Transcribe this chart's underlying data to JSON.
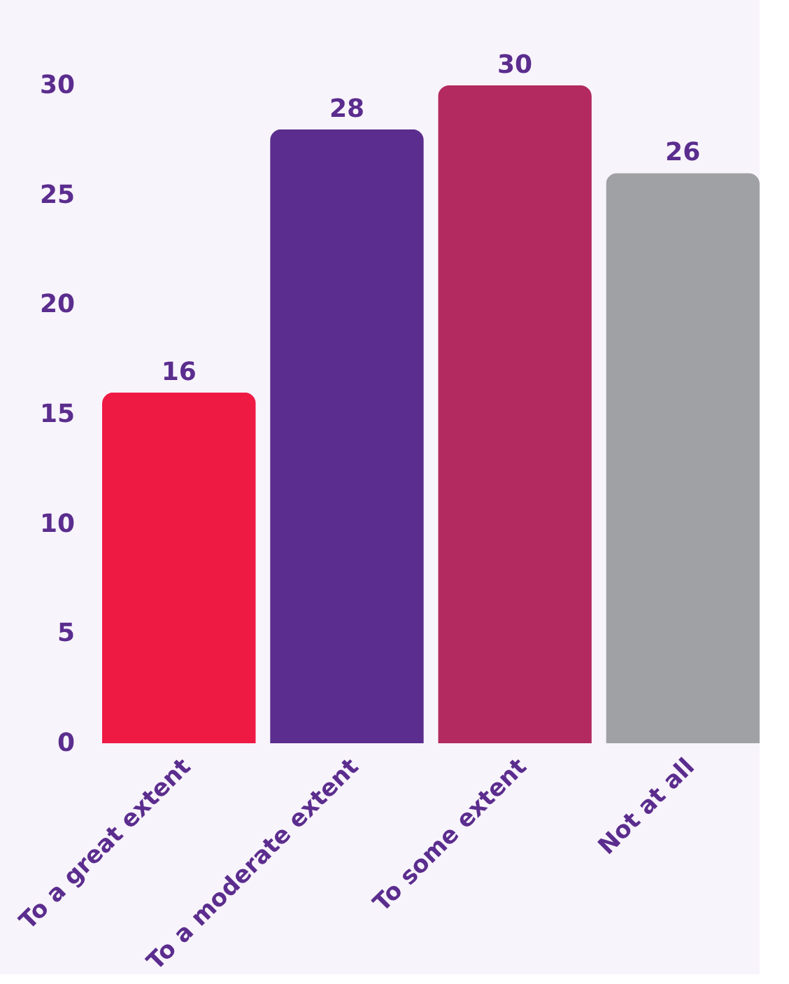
{
  "chart_data": {
    "type": "bar",
    "categories": [
      "To a great extent",
      "To a moderate extent",
      "To some extent",
      "Not at all"
    ],
    "values": [
      16,
      28,
      30,
      26
    ],
    "colors": [
      "#ee1a44",
      "#5b2d8e",
      "#b22a5f",
      "#a0a1a5"
    ],
    "ylim": [
      0,
      30
    ],
    "yticks": [
      0,
      5,
      10,
      15,
      20,
      25,
      30
    ],
    "data_labels": true,
    "grid": false
  }
}
